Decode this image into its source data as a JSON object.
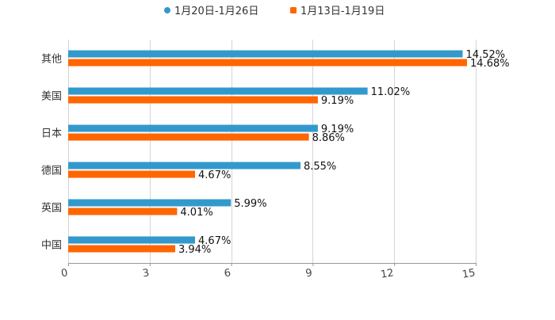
{
  "chart_data": {
    "type": "bar",
    "orientation": "horizontal",
    "categories": [
      "其他",
      "美国",
      "日本",
      "德国",
      "英国",
      "中国"
    ],
    "series": [
      {
        "name": "1月20日-1月26日",
        "color": "#3399cc",
        "values": [
          14.52,
          11.02,
          9.19,
          8.55,
          5.99,
          4.67
        ],
        "labels": [
          "14.52%",
          "11.02%",
          "9.19%",
          "8.55%",
          "5.99%",
          "4.67%"
        ]
      },
      {
        "name": "1月13日-1月19日",
        "color": "#ff6600",
        "values": [
          14.68,
          9.19,
          8.86,
          4.67,
          4.01,
          3.94
        ],
        "labels": [
          "14.68%",
          "9.19%",
          "8.86%",
          "4.67%",
          "4.01%",
          "3.94%"
        ]
      }
    ],
    "xlim": [
      0,
      15
    ],
    "xticks": [
      "0",
      "3",
      "6",
      "9",
      "12",
      "15"
    ],
    "grid": true,
    "legend_position": "top-center"
  }
}
